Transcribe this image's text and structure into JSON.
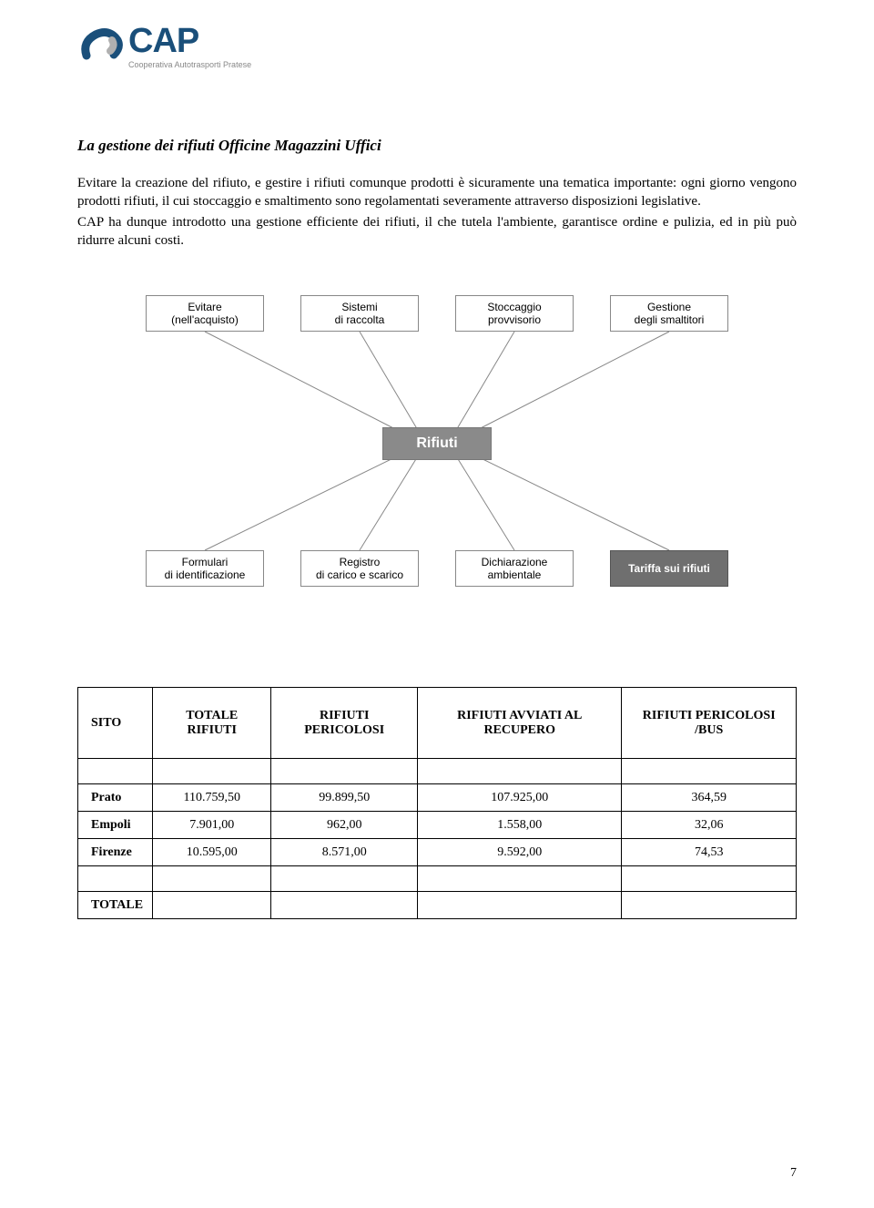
{
  "logo": {
    "name": "CAP",
    "subtitle": "Cooperativa Autotrasporti Pratese",
    "color_primary": "#1a4f7a",
    "color_sub": "#888888"
  },
  "heading": "La gestione dei rifiuti Officine Magazzini Uffici",
  "para1": "Evitare la creazione del rifiuto, e gestire i rifiuti comunque prodotti è sicuramente una tematica importante: ogni giorno vengono prodotti rifiuti, il cui stoccaggio e smaltimento sono regolamentati severamente attraverso disposizioni legislative.",
  "para2": "CAP ha dunque introdotto una gestione efficiente dei rifiuti, il che tutela l'ambiente, garantisce ordine e pulizia, ed in più può ridurre alcuni costi.",
  "diagram": {
    "center": "Rifiuti",
    "top_nodes": [
      "Evitare\n(nell'acquisto)",
      "Sistemi\ndi raccolta",
      "Stoccaggio\nprovvisorio",
      "Gestione\ndegli smaltitori"
    ],
    "bottom_nodes": [
      "Formulari\ndi identificazione",
      "Registro\ndi carico e scarico",
      "Dichiarazione\nambientale",
      "Tariffa sui rifiuti"
    ],
    "node_border": "#888888",
    "center_bg": "#8a8a8a",
    "dark_bg": "#6f6f6f",
    "line_color": "#888888"
  },
  "table": {
    "headers": [
      "SITO",
      "TOTALE RIFIUTI",
      "RIFIUTI PERICOLOSI",
      "RIFIUTI AVVIATI AL RECUPERO",
      "RIFIUTI PERICOLOSI /BUS"
    ],
    "rows": [
      {
        "site": "Prato",
        "total": "110.759,50",
        "hazard": "99.899,50",
        "recovery": "107.925,00",
        "perbus": "364,59"
      },
      {
        "site": "Empoli",
        "total": "7.901,00",
        "hazard": "962,00",
        "recovery": "1.558,00",
        "perbus": "32,06"
      },
      {
        "site": "Firenze",
        "total": "10.595,00",
        "hazard": "8.571,00",
        "recovery": "9.592,00",
        "perbus": "74,53"
      }
    ],
    "footer_label": "TOTALE"
  },
  "page_number": "7"
}
